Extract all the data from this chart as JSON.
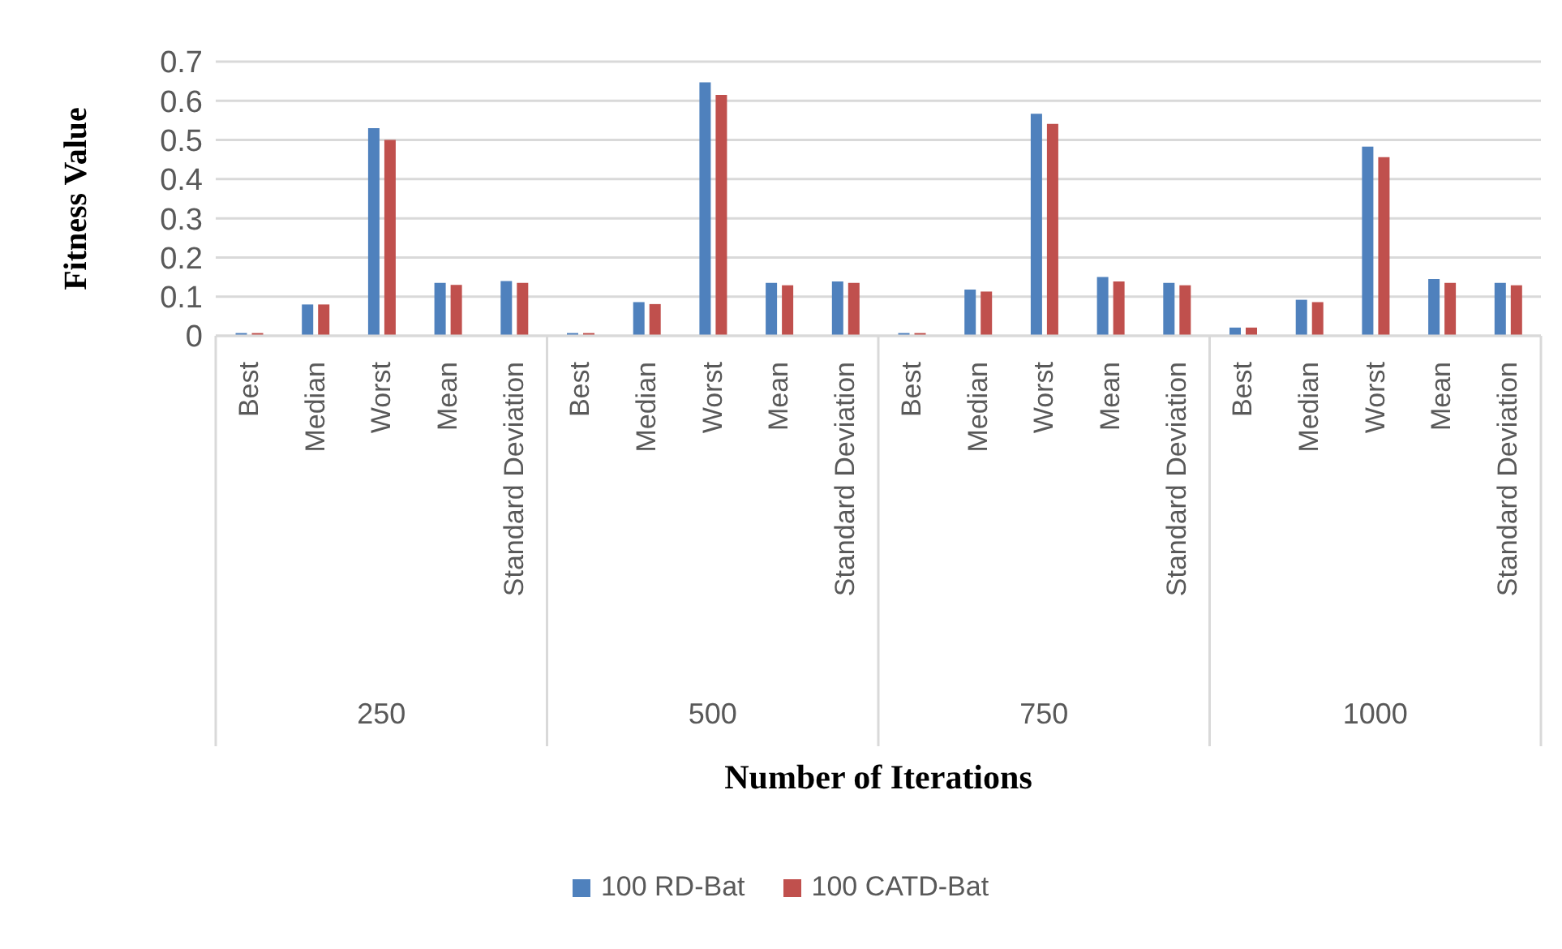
{
  "chart_data": {
    "type": "bar",
    "xlabel": "Number of Iterations",
    "ylabel": "Fitness Value",
    "categories": [
      "Best",
      "Median",
      "Worst",
      "Mean",
      "Standard Deviation",
      "Best",
      "Median",
      "Worst",
      "Mean",
      "Standard Deviation",
      "Best",
      "Median",
      "Worst",
      "Mean",
      "Standard Deviation",
      "Best",
      "Median",
      "Worst",
      "Mean",
      "Standard Deviation"
    ],
    "annotations": [
      "250",
      "500",
      "750",
      "1000"
    ],
    "series": [
      {
        "name": "100 RD-Bat",
        "color": "#4f81bd",
        "values": [
          0.007,
          0.08,
          0.53,
          0.135,
          0.14,
          0.007,
          0.086,
          0.647,
          0.135,
          0.139,
          0.007,
          0.118,
          0.567,
          0.15,
          0.135,
          0.021,
          0.092,
          0.483,
          0.145,
          0.135
        ]
      },
      {
        "name": "100 CATD-Bat",
        "color": "#c0504d",
        "values": [
          0.007,
          0.08,
          0.5,
          0.13,
          0.135,
          0.007,
          0.081,
          0.615,
          0.129,
          0.135,
          0.007,
          0.113,
          0.541,
          0.139,
          0.129,
          0.021,
          0.086,
          0.456,
          0.135,
          0.129
        ]
      }
    ],
    "ylim": [
      0,
      0.7
    ],
    "yticks": [
      0,
      0.1,
      0.2,
      0.3,
      0.4,
      0.5,
      0.6,
      0.7
    ],
    "grid": "y",
    "legend": "bottom"
  }
}
